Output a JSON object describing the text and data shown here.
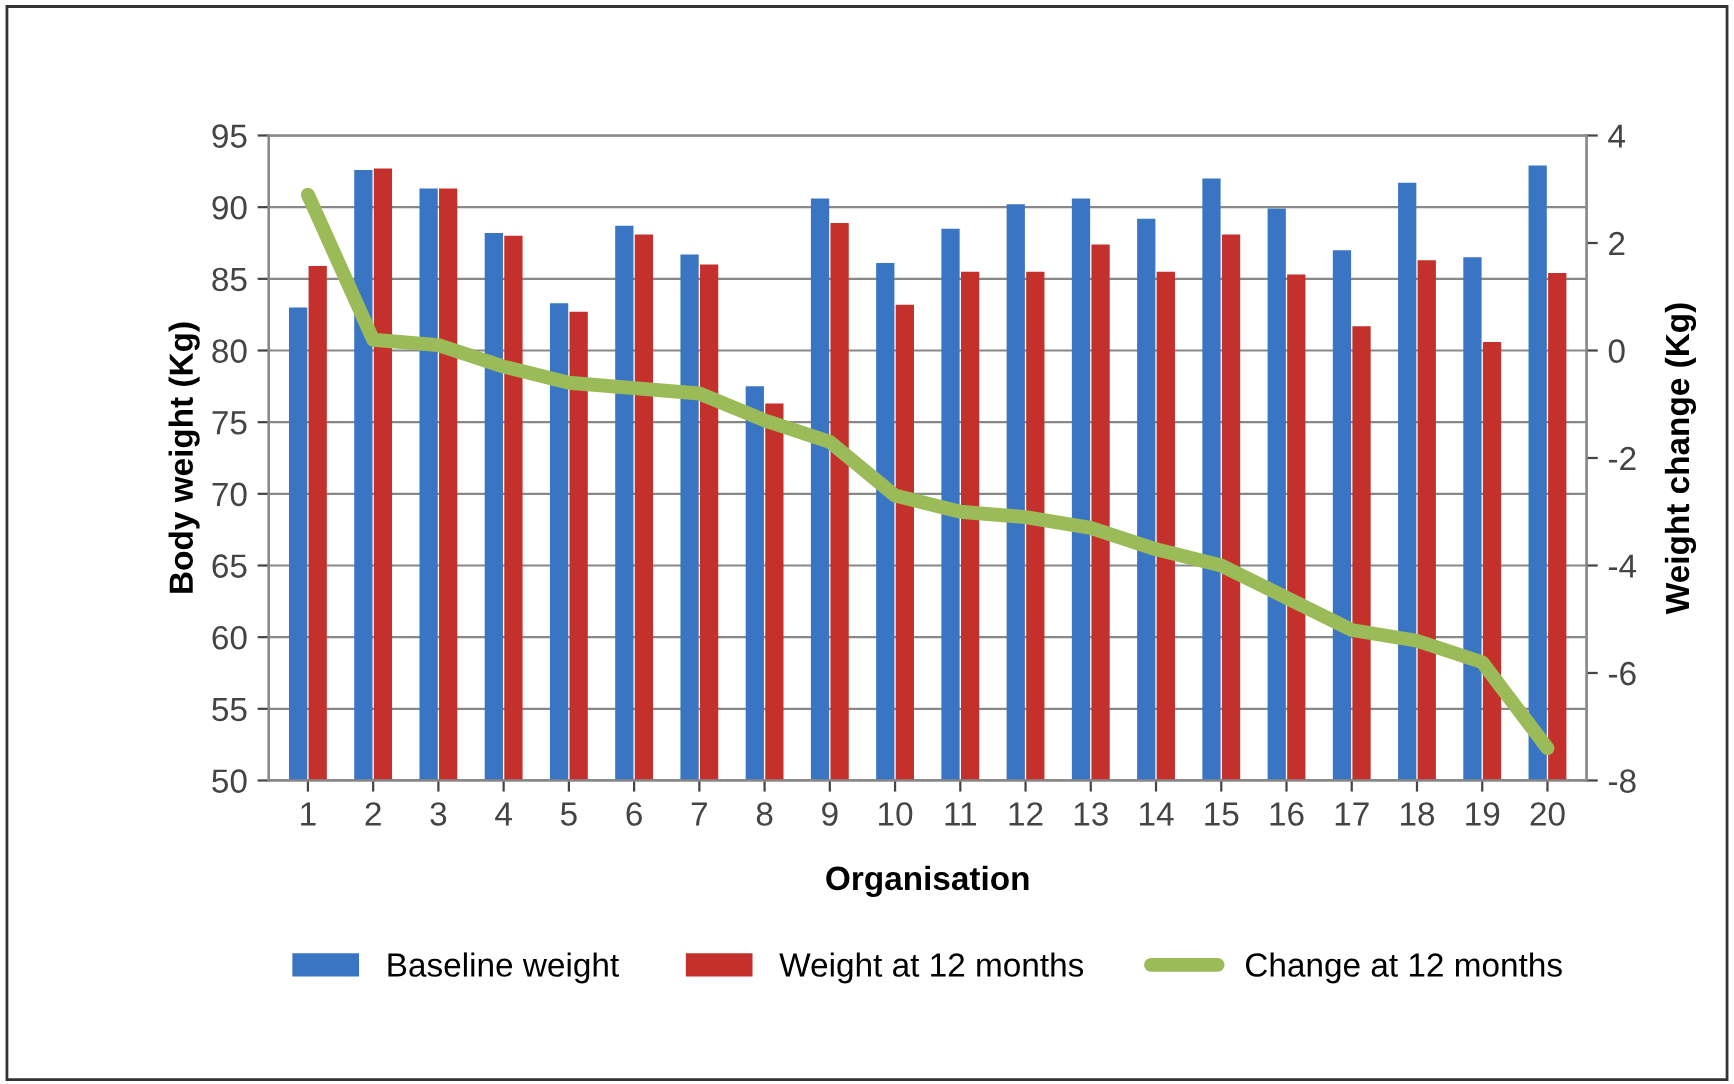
{
  "chart_data": {
    "type": "bar",
    "xlabel": "Organisation",
    "ylabel": "Body weight (Kg)",
    "y2label": "Weight change (Kg)",
    "categories": [
      "1",
      "2",
      "3",
      "4",
      "5",
      "6",
      "7",
      "8",
      "9",
      "10",
      "11",
      "12",
      "13",
      "14",
      "15",
      "16",
      "17",
      "18",
      "19",
      "20"
    ],
    "series": [
      {
        "name": "Baseline weight",
        "color": "#3a75c4",
        "values": [
          83.0,
          92.6,
          91.3,
          88.2,
          83.3,
          88.7,
          86.7,
          77.5,
          90.6,
          86.1,
          88.5,
          90.2,
          90.6,
          89.2,
          92.0,
          89.9,
          87.0,
          91.7,
          86.5,
          92.9
        ]
      },
      {
        "name": "Weight at 12 months",
        "color": "#c4302b",
        "values": [
          85.9,
          92.7,
          91.3,
          88.0,
          82.7,
          88.1,
          86.0,
          76.3,
          88.9,
          83.2,
          85.5,
          85.5,
          87.4,
          85.5,
          88.1,
          85.3,
          81.7,
          86.3,
          80.6,
          85.4
        ]
      },
      {
        "name": "Change at 12 months",
        "type": "line",
        "axis": "y2",
        "color": "#9bbb59",
        "values": [
          2.9,
          0.2,
          0.1,
          -0.3,
          -0.6,
          -0.7,
          -0.8,
          -1.3,
          -1.7,
          -2.7,
          -3.0,
          -3.1,
          -3.3,
          -3.7,
          -4.0,
          -4.6,
          -5.2,
          -5.4,
          -5.8,
          -7.4
        ]
      }
    ],
    "ylim": [
      50,
      95
    ],
    "yticks": [
      50,
      55,
      60,
      65,
      70,
      75,
      80,
      85,
      90,
      95
    ],
    "y2lim": [
      -8,
      4
    ],
    "y2ticks": [
      -8,
      -6,
      -4,
      -2,
      0,
      2,
      4
    ],
    "grid": "y",
    "legend": "bottom"
  }
}
